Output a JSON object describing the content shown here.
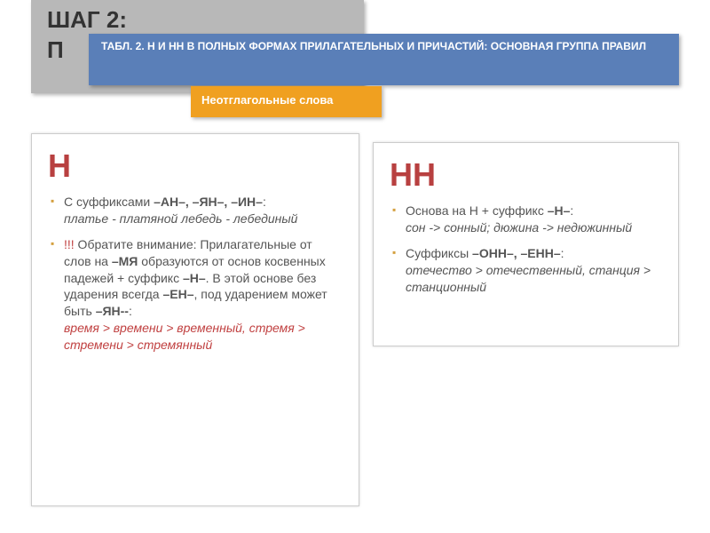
{
  "header": {
    "gray_line1": "ШАГ 2:",
    "gray_line2": "П",
    "blue": "ТАБЛ. 2. Н И НН В ПОЛНЫХ ФОРМАХ ПРИЛАГАТЕЛЬНЫХ И ПРИЧАСТИЙ: ОСНОВНАЯ ГРУППА ПРАВИЛ",
    "orange": "Неотглагольные слова"
  },
  "left": {
    "title": "Н",
    "item1_a": "С суффиксами ",
    "item1_b": "–АН–, –ЯН–, –ИН–",
    "item1_c": ":",
    "item1_ex": "платье - платяной лебедь - лебединый",
    "item2_a": "!!!",
    "item2_b": " Обратите внимание: Прилагательные от слов на ",
    "item2_c": "–МЯ",
    "item2_d": " образуются от основ косвенных падежей + суффикс ",
    "item2_e": "–Н–",
    "item2_f": ". В этой основе без ударения всегда ",
    "item2_g": "–ЕН–",
    "item2_h": ", под ударением может быть ",
    "item2_i": "–ЯН--",
    "item2_j": ":",
    "item2_ex": "время > времени > временный, стремя > стремени > стремянный"
  },
  "right": {
    "title": "НН",
    "item1_a": "Основа на Н + суффикс ",
    "item1_b": "–Н–",
    "item1_c": ":",
    "item1_ex": "сон -> сонный; дюжина -> недюжинный",
    "item2_a": "Суффиксы ",
    "item2_b": "–ОНН–, –ЕНН–",
    "item2_c": ":",
    "item2_ex": "отечество > отечественный, станция > станционный"
  },
  "colors": {
    "gray_bg": "#b8b8b8",
    "blue_bg": "#5a7fb8",
    "orange_bg": "#f0a020",
    "red_text": "#c04040",
    "title_red": "#b84040",
    "body_text": "#555555",
    "bullet": "#d4a040"
  }
}
